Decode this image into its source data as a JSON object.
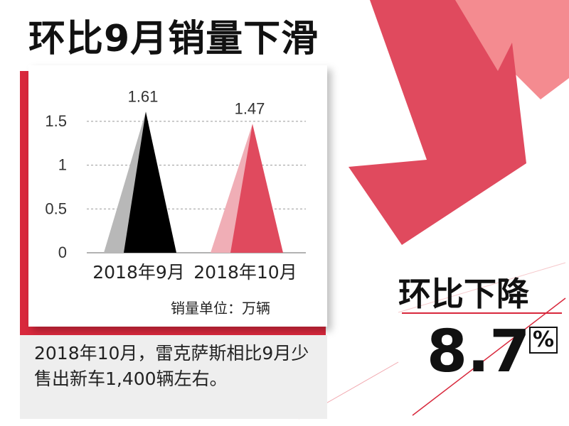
{
  "title": "环比9月销量下滑",
  "unit_label": "销量单位：万辆",
  "description": "2018年10月，雷克萨斯相比9月少售出新车1,400辆左右。",
  "decline_label": "环比下降",
  "decline_value": "8.7",
  "percent_symbol": "%",
  "chart_data": {
    "type": "bar",
    "categories": [
      "2018年9月",
      "2018年10月"
    ],
    "values": [
      1.61,
      1.47
    ],
    "data_labels": [
      "1.61",
      "1.47"
    ],
    "yticks": [
      "0",
      "0.5",
      "1",
      "1.5"
    ],
    "ylim": [
      0,
      1.75
    ],
    "grid": true,
    "colors": {
      "bar1_front": "#000000",
      "bar1_back": "#b8b8b8",
      "bar2_front": "#e04a5e",
      "bar2_back": "#f0aeb6",
      "grid": "#999999"
    }
  }
}
